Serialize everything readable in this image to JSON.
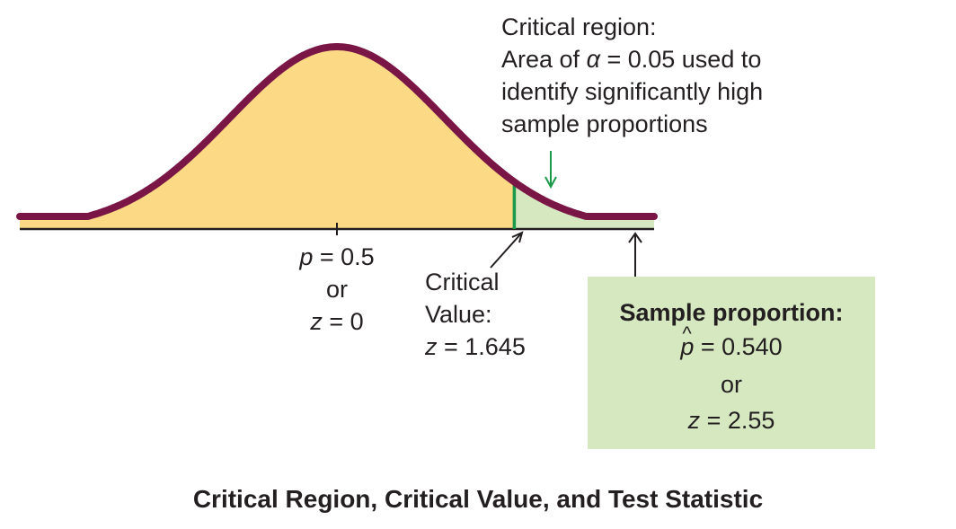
{
  "critical_region_note": {
    "line1": "Critical region:",
    "line2_prefix": "Area of ",
    "alpha_symbol": "α",
    "line2_suffix": " = 0.05 used to",
    "line3": "identify significantly high",
    "line4": "sample proportions"
  },
  "null_value": {
    "p_symbol": "p",
    "p_value": " = 0.5",
    "or": "or",
    "z_symbol": "z",
    "z_value": " = 0"
  },
  "critical_value": {
    "line1": "Critical",
    "line2": "Value:",
    "z_symbol": "z",
    "z_value": " = 1.645"
  },
  "sample_box": {
    "title": "Sample proportion:",
    "phat_symbol": "p",
    "phat_value": " = 0.540",
    "or": "or",
    "z_symbol": "z",
    "z_value": " = 2.55"
  },
  "caption": "Critical Region, Critical Value, and Test Statistic",
  "colors": {
    "body_fill": "#fcd984",
    "tail_fill": "#d5e8c0",
    "curve": "#7a1646",
    "critical_line": "#1a9a4a",
    "axis": "#231f20"
  }
}
